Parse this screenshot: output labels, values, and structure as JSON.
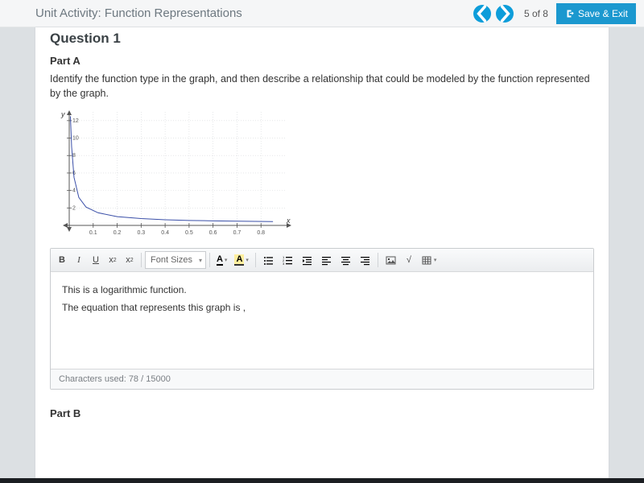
{
  "topbar": {
    "title": "Unit Activity: Function Representations",
    "page_current": 5,
    "page_total": 8,
    "pager_text": "5  of  8",
    "save_exit": "Save & Exit"
  },
  "question": {
    "heading": "Question 1",
    "partA": {
      "label": "Part A",
      "prompt": "Identify the function type in the graph, and then describe a relationship that could be modeled by the function represented by the graph."
    },
    "partB": {
      "label": "Part B"
    }
  },
  "chart": {
    "type": "line",
    "ylabel": "y",
    "xlabel": "x",
    "yticks": [
      2,
      4,
      6,
      8,
      10,
      12
    ],
    "xticks": [
      0.1,
      0.2,
      0.3,
      0.4,
      0.5,
      0.6,
      0.7,
      0.8
    ],
    "xlim": [
      0,
      0.9
    ],
    "ylim": [
      0,
      13
    ],
    "grid_color": "#d7d9dc",
    "axis_color": "#555555",
    "curve_color": "#3a4fa8",
    "background": "#ffffff",
    "tick_font_size": 7,
    "label_font_size": 9,
    "curve_points": [
      [
        0.005,
        12.5
      ],
      [
        0.01,
        9.0
      ],
      [
        0.02,
        5.5
      ],
      [
        0.04,
        3.2
      ],
      [
        0.07,
        2.1
      ],
      [
        0.12,
        1.45
      ],
      [
        0.2,
        1.0
      ],
      [
        0.3,
        0.78
      ],
      [
        0.4,
        0.65
      ],
      [
        0.5,
        0.57
      ],
      [
        0.6,
        0.52
      ],
      [
        0.7,
        0.48
      ],
      [
        0.85,
        0.44
      ]
    ]
  },
  "editor": {
    "toolbar": {
      "bold": "B",
      "italic": "I",
      "underline": "U",
      "sup": "x",
      "sub": "x",
      "font_sizes": "Font Sizes",
      "text_color": "A",
      "bg_color": "A"
    },
    "body_line1": "This is a logarithmic function.",
    "body_line2": "The equation that represents this graph is ,",
    "chars_used": 78,
    "chars_max": 15000,
    "chars_label": "Characters used: 78 / 15000"
  },
  "colors": {
    "accent": "#0d9dda",
    "save_btn": "#1b98cf"
  }
}
